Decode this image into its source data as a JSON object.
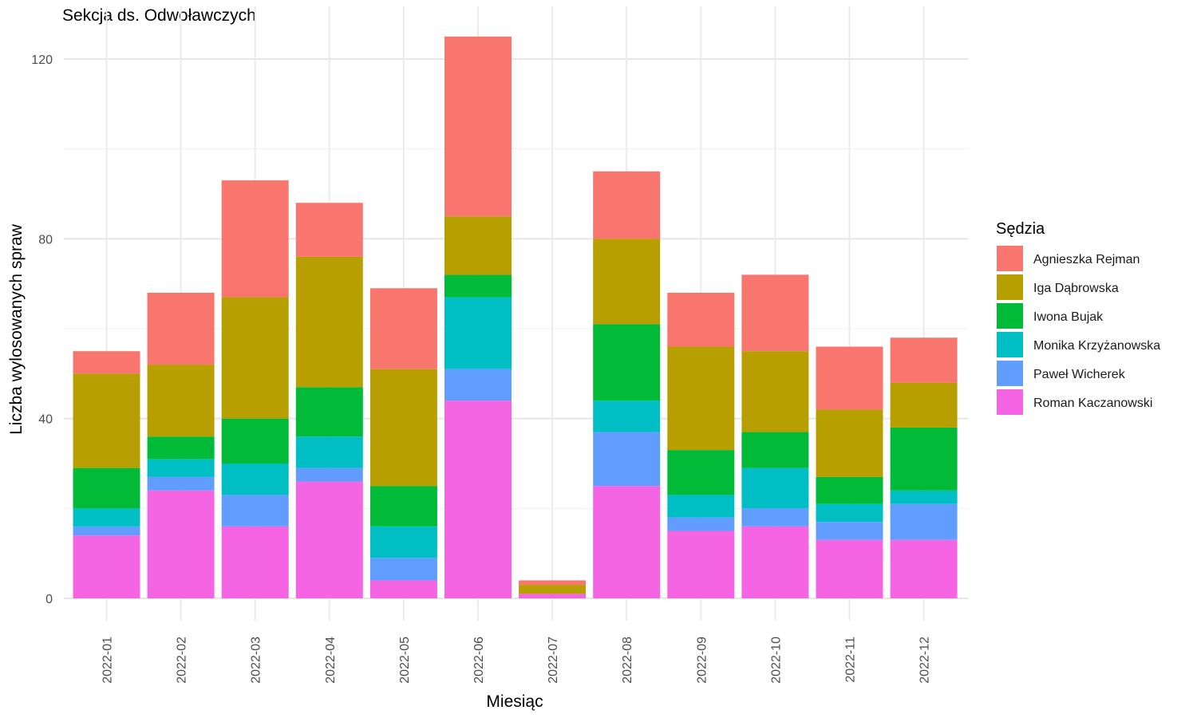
{
  "chart_data": {
    "type": "bar",
    "stacked": true,
    "title": "Sekcja ds. Odwoławczych",
    "xlabel": "Miesiąc",
    "ylabel": "Liczba wylosowanych spraw",
    "ylim": [
      -5,
      127
    ],
    "yticks": [
      0,
      40,
      80,
      120
    ],
    "grid": true,
    "legend_title": "Sędzia",
    "legend_position": "right",
    "categories": [
      "2022-01",
      "2022-02",
      "2022-03",
      "2022-04",
      "2022-05",
      "2022-06",
      "2022-07",
      "2022-08",
      "2022-09",
      "2022-10",
      "2022-11",
      "2022-12"
    ],
    "series": [
      {
        "name": "Roman Kaczanowski",
        "color": "#F564E3",
        "values": [
          14,
          24,
          16,
          26,
          4,
          44,
          1,
          25,
          15,
          16,
          13,
          13
        ]
      },
      {
        "name": "Paweł Wicherek",
        "color": "#619CFF",
        "values": [
          2,
          3,
          7,
          3,
          5,
          7,
          0,
          12,
          3,
          4,
          4,
          8
        ]
      },
      {
        "name": "Monika Krzyżanowska",
        "color": "#00BFC4",
        "values": [
          4,
          4,
          7,
          7,
          7,
          16,
          0,
          7,
          5,
          9,
          4,
          3
        ]
      },
      {
        "name": "Iwona Bujak",
        "color": "#00BA38",
        "values": [
          9,
          5,
          10,
          11,
          9,
          5,
          0,
          17,
          10,
          8,
          6,
          14
        ]
      },
      {
        "name": "Iga Dąbrowska",
        "color": "#B79F00",
        "values": [
          21,
          16,
          27,
          29,
          26,
          13,
          2,
          19,
          23,
          18,
          15,
          10
        ]
      },
      {
        "name": "Agnieszka Rejman",
        "color": "#F8766D",
        "values": [
          5,
          16,
          26,
          12,
          18,
          40,
          1,
          15,
          12,
          17,
          14,
          10
        ]
      }
    ],
    "legend_order": [
      "Agnieszka Rejman",
      "Iga Dąbrowska",
      "Iwona Bujak",
      "Monika Krzyżanowska",
      "Paweł Wicherek",
      "Roman Kaczanowski"
    ]
  }
}
